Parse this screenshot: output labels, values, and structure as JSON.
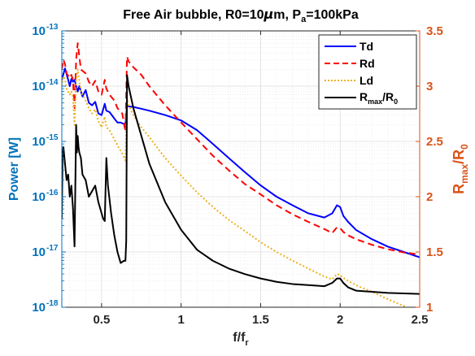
{
  "chart_data": {
    "type": "line",
    "title": {
      "main": "Free Air bubble, R0=10",
      "mu": "μ",
      "m": "m, P",
      "sub": "a",
      "tail": "=100kPa"
    },
    "xlabel": {
      "base": "f/f",
      "sub": "r"
    },
    "ylabel_left": "Power [W]",
    "ylabel_right": {
      "base": "R",
      "sub1": "max",
      "mid": "/R",
      "sub2": "0"
    },
    "left_axis": {
      "scale": "log",
      "ylim": [
        1e-18,
        1e-13
      ],
      "ticks": [
        {
          "value": 1e-18,
          "base": "10",
          "exp": "-18"
        },
        {
          "value": 1e-17,
          "base": "10",
          "exp": "-17"
        },
        {
          "value": 1e-16,
          "base": "10",
          "exp": "-16"
        },
        {
          "value": 1e-15,
          "base": "10",
          "exp": "-15"
        },
        {
          "value": 1e-14,
          "base": "10",
          "exp": "-14"
        },
        {
          "value": 1e-13,
          "base": "10",
          "exp": "-13"
        }
      ],
      "color": "#0072BD"
    },
    "right_axis": {
      "scale": "linear",
      "ylim": [
        1,
        3.5
      ],
      "ticks": [
        1,
        1.5,
        2,
        2.5,
        3,
        3.5
      ],
      "tick_labels": [
        "1",
        "1.5",
        "2",
        "2.5",
        "3",
        "3.5"
      ],
      "color": "#D95319"
    },
    "x_axis": {
      "xlim": [
        0.25,
        2.5
      ],
      "ticks": [
        0.5,
        1,
        1.5,
        2,
        2.5
      ],
      "tick_labels": [
        "0.5",
        "1",
        "1.5",
        "2",
        "2.5"
      ]
    },
    "grid": true,
    "minor_grid": true,
    "legend": {
      "placement": "top-right"
    },
    "series": [
      {
        "name": "Td",
        "axis": "left",
        "color": "#0000FF",
        "style": "solid",
        "x": [
          0.25,
          0.27,
          0.29,
          0.3,
          0.31,
          0.32,
          0.33,
          0.35,
          0.36,
          0.38,
          0.4,
          0.42,
          0.44,
          0.46,
          0.48,
          0.5,
          0.52,
          0.53,
          0.55,
          0.58,
          0.6,
          0.62,
          0.65,
          0.66,
          0.67,
          0.7,
          0.75,
          0.8,
          0.9,
          1.0,
          1.1,
          1.2,
          1.3,
          1.4,
          1.5,
          1.6,
          1.7,
          1.8,
          1.9,
          1.95,
          1.98,
          2.0,
          2.02,
          2.05,
          2.1,
          2.2,
          2.3,
          2.4,
          2.5
        ],
        "y": [
          1.3e-14,
          2.1e-14,
          1.3e-14,
          1e-14,
          1.35e-14,
          1.2e-14,
          1.3e-14,
          8e-15,
          1e-14,
          6.5e-15,
          8.5e-15,
          5e-15,
          4.5e-15,
          5.2e-15,
          3.2e-15,
          3e-15,
          4.8e-15,
          3.6e-15,
          3.4e-15,
          2.6e-15,
          2.2e-15,
          2.2e-15,
          2e-15,
          4.5e-15,
          4.3e-15,
          4.2e-15,
          3.9e-15,
          3.6e-15,
          3e-15,
          2.4e-15,
          1.6e-15,
          9e-16,
          5e-16,
          2.8e-16,
          1.6e-16,
          1e-16,
          7e-17,
          5e-17,
          4.2e-17,
          5e-17,
          7e-17,
          6.5e-17,
          4.5e-17,
          3.5e-17,
          2.5e-17,
          1.7e-17,
          1.25e-17,
          1e-17,
          8e-18
        ]
      },
      {
        "name": "Rd",
        "axis": "left",
        "color": "#FF0000",
        "style": "dashed",
        "x": [
          0.25,
          0.26,
          0.27,
          0.28,
          0.3,
          0.31,
          0.32,
          0.33,
          0.34,
          0.35,
          0.37,
          0.4,
          0.42,
          0.44,
          0.46,
          0.48,
          0.5,
          0.52,
          0.53,
          0.55,
          0.58,
          0.6,
          0.63,
          0.65,
          0.66,
          0.67,
          0.7,
          0.75,
          0.8,
          0.9,
          1.0,
          1.1,
          1.2,
          1.3,
          1.4,
          1.5,
          1.6,
          1.7,
          1.8,
          1.9,
          1.95,
          1.98,
          2.0,
          2.02,
          2.05,
          2.1,
          2.2,
          2.3,
          2.4,
          2.5
        ],
        "y": [
          2e-14,
          3e-14,
          2.5e-14,
          1.7e-14,
          1.4e-14,
          1.6e-14,
          1.3e-14,
          4e-15,
          3e-14,
          6e-14,
          2e-14,
          1.7e-14,
          1.2e-14,
          1e-14,
          1.25e-14,
          8e-15,
          7e-15,
          1.3e-14,
          9e-15,
          7e-15,
          5.5e-15,
          4e-15,
          3.2e-15,
          1.5e-15,
          3.4e-14,
          2.8e-14,
          2.2e-14,
          1.6e-14,
          1e-14,
          4.5e-15,
          2.2e-15,
          1.1e-15,
          5.5e-16,
          3e-16,
          1.7e-16,
          1.1e-16,
          7e-17,
          4.8e-17,
          3.5e-17,
          2.6e-17,
          2.2e-17,
          2.8e-17,
          2.7e-17,
          2.3e-17,
          2e-17,
          1.7e-17,
          1.35e-17,
          1.12e-17,
          9.8e-18,
          9e-18
        ]
      },
      {
        "name": "Ld",
        "axis": "left",
        "color": "#EDB120",
        "style": "dotted",
        "x": [
          0.25,
          0.26,
          0.27,
          0.28,
          0.3,
          0.31,
          0.32,
          0.33,
          0.34,
          0.35,
          0.37,
          0.4,
          0.42,
          0.44,
          0.46,
          0.48,
          0.5,
          0.52,
          0.53,
          0.55,
          0.58,
          0.6,
          0.63,
          0.65,
          0.66,
          0.67,
          0.7,
          0.75,
          0.8,
          0.9,
          1.0,
          1.1,
          1.2,
          1.3,
          1.4,
          1.5,
          1.6,
          1.7,
          1.8,
          1.9,
          1.95,
          1.98,
          2.0,
          2.02,
          2.05,
          2.1,
          2.2,
          2.3,
          2.4,
          2.5
        ],
        "y": [
          1e-14,
          1.5e-14,
          1.3e-14,
          9e-15,
          7e-15,
          8e-15,
          6.5e-15,
          2e-15,
          1.3e-14,
          2e-14,
          8e-15,
          5.5e-15,
          4e-15,
          3.2e-15,
          3.8e-15,
          2.3e-15,
          1.8e-15,
          2.8e-15,
          1.8e-15,
          1.6e-15,
          1.1e-15,
          8.5e-16,
          6e-16,
          4.5e-16,
          6e-15,
          4.5e-15,
          3e-15,
          1.8e-15,
          1.2e-15,
          5e-16,
          2.4e-16,
          1.2e-16,
          6.5e-17,
          3.8e-17,
          2.4e-17,
          1.5e-17,
          1e-17,
          7e-18,
          5e-18,
          3.6e-18,
          3.2e-18,
          4e-18,
          3.8e-18,
          3.4e-18,
          3e-18,
          2.5e-18,
          1.9e-18,
          1.4e-18,
          1.05e-18,
          7.5e-19
        ]
      },
      {
        "name": "R_max/R_0",
        "axis": "right",
        "color": "#000000",
        "style": "solid",
        "x": [
          0.25,
          0.255,
          0.26,
          0.27,
          0.28,
          0.29,
          0.3,
          0.31,
          0.32,
          0.33,
          0.34,
          0.345,
          0.35,
          0.355,
          0.36,
          0.37,
          0.38,
          0.4,
          0.42,
          0.44,
          0.46,
          0.48,
          0.5,
          0.51,
          0.52,
          0.53,
          0.54,
          0.56,
          0.58,
          0.6,
          0.62,
          0.64,
          0.65,
          0.655,
          0.66,
          0.67,
          0.7,
          0.75,
          0.8,
          0.9,
          1.0,
          1.1,
          1.2,
          1.3,
          1.4,
          1.5,
          1.6,
          1.7,
          1.8,
          1.9,
          1.95,
          1.98,
          2.0,
          2.02,
          2.05,
          2.1,
          2.2,
          2.3,
          2.4,
          2.5
        ],
        "y": [
          1.8,
          2.4,
          2.45,
          2.3,
          2.15,
          2.2,
          2.0,
          2.1,
          1.9,
          1.55,
          2.65,
          2.4,
          2.55,
          2.45,
          2.4,
          2.35,
          2.2,
          2.15,
          2.0,
          2.05,
          2.1,
          1.95,
          1.85,
          1.8,
          1.78,
          2.35,
          2.1,
          1.85,
          1.65,
          1.5,
          1.4,
          1.42,
          1.42,
          1.6,
          3.1,
          3.0,
          2.8,
          2.55,
          2.3,
          1.95,
          1.7,
          1.52,
          1.42,
          1.35,
          1.3,
          1.26,
          1.23,
          1.21,
          1.2,
          1.19,
          1.22,
          1.26,
          1.26,
          1.22,
          1.18,
          1.15,
          1.14,
          1.13,
          1.125,
          1.12
        ]
      }
    ],
    "legend_entries": [
      {
        "key": "Td",
        "label": "Td"
      },
      {
        "key": "Rd",
        "label": "Rd"
      },
      {
        "key": "Ld",
        "label": "Ld"
      },
      {
        "key": "R_max/R_0",
        "label_base": "R",
        "label_sub1": "max",
        "label_mid": "/R",
        "label_sub2": "0"
      }
    ]
  }
}
